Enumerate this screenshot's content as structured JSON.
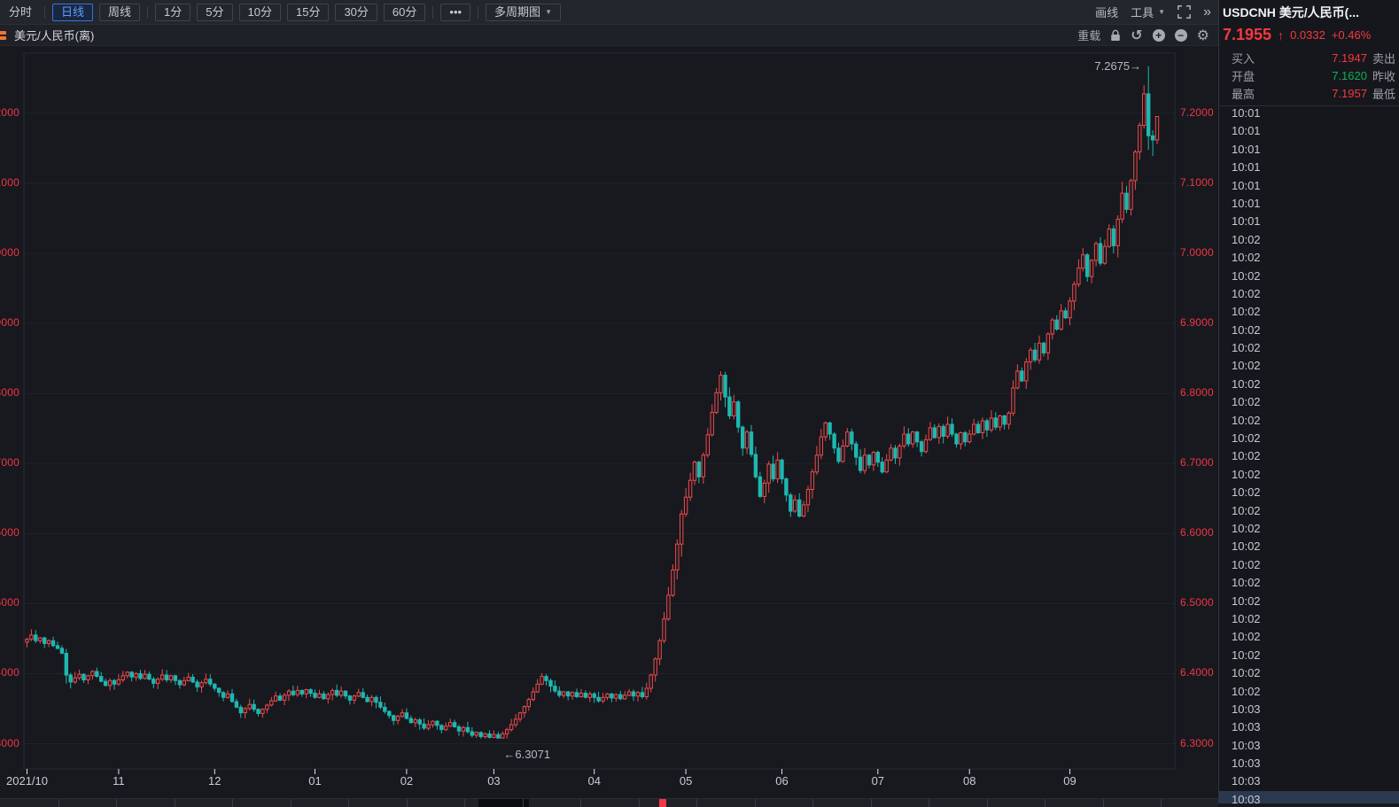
{
  "colors": {
    "red": "#f5393f",
    "green": "#10b057",
    "up": "#ef4a4e",
    "down": "#1db8b0",
    "axis_red": "#f23645"
  },
  "icons": {
    "caret_down": "▼",
    "more_dots": "•••",
    "collapse_right": "»",
    "undo": "↺",
    "zoom_in": "+",
    "zoom_out": "−",
    "gear": "⚙",
    "up_arrow": "↑"
  },
  "toolbar": {
    "periods": [
      {
        "label": "分时",
        "plain": true,
        "sep_after": true
      },
      {
        "label": "日线",
        "selected": true
      },
      {
        "label": "周线",
        "sep_after": true
      },
      {
        "label": "1分"
      },
      {
        "label": "5分"
      },
      {
        "label": "10分"
      },
      {
        "label": "15分"
      },
      {
        "label": "30分"
      },
      {
        "label": "60分",
        "sep_after": true
      },
      {
        "label": "•••",
        "sep_after": true
      },
      {
        "label": "多周期图",
        "caret": true
      }
    ],
    "draw_label": "画线",
    "tools_label": "工具"
  },
  "chart_header": {
    "symbol_label": "美元/人民币(离)",
    "reload_label": "重载"
  },
  "quote_panel": {
    "title": "USDCNH 美元/人民币(...",
    "last": "7.1955",
    "change": "0.0332",
    "change_pct": "+0.46%",
    "direction": "up",
    "rows": [
      {
        "label_left": "买入",
        "value": "7.1947",
        "value_color": "red",
        "label_right": "卖出"
      },
      {
        "label_left": "开盘",
        "value": "7.1620",
        "value_color": "green",
        "label_right": "昨收"
      },
      {
        "label_left": "最高",
        "value": "7.1957",
        "value_color": "red",
        "label_right": "最低"
      }
    ]
  },
  "tape": {
    "selected_last": true,
    "rows": [
      "10:01",
      "10:01",
      "10:01",
      "10:01",
      "10:01",
      "10:01",
      "10:01",
      "10:02",
      "10:02",
      "10:02",
      "10:02",
      "10:02",
      "10:02",
      "10:02",
      "10:02",
      "10:02",
      "10:02",
      "10:02",
      "10:02",
      "10:02",
      "10:02",
      "10:02",
      "10:02",
      "10:02",
      "10:02",
      "10:02",
      "10:02",
      "10:02",
      "10:02",
      "10:02",
      "10:02",
      "10:02",
      "10:02",
      "10:03",
      "10:03",
      "10:03",
      "10:03",
      "10:03",
      "10:03"
    ]
  },
  "chart_data": {
    "type": "candlestick",
    "symbol": "USDCNH",
    "title": "美元/人民币(离)",
    "timeframe": "日线",
    "x_tick_labels": [
      "2021/10",
      "11",
      "12",
      "01",
      "02",
      "03",
      "04",
      "05",
      "06",
      "07",
      "08",
      "09"
    ],
    "x_tick_indices": [
      0,
      21,
      43,
      66,
      87,
      107,
      130,
      151,
      173,
      195,
      216,
      239
    ],
    "y_ticks": [
      "7.2000",
      "7.1000",
      "7.0000",
      "6.9000",
      "6.8000",
      "6.7000",
      "6.6000",
      "6.5000",
      "6.4000",
      "6.3000"
    ],
    "y_tick_values": [
      7.2,
      7.1,
      7.0,
      6.9,
      6.8,
      6.7,
      6.6,
      6.5,
      6.4,
      6.3
    ],
    "ylim": [
      6.2639,
      7.286
    ],
    "grid": true,
    "axis_label_color": "#f23645",
    "up_color": "#ef4a4e",
    "down_color": "#1db8b0",
    "high_annotation": {
      "text": "7.2675→",
      "index": 257,
      "price": 7.2675
    },
    "low_annotation": {
      "text": "←6.3071",
      "index": 108,
      "price": 6.3071
    },
    "wick_pattern": [
      0.004,
      0.009,
      0.002,
      0.012,
      0.006,
      0.003,
      0.01,
      0.005,
      0.008,
      0.002
    ],
    "overrides": {
      "108": {
        "low": 6.3071
      },
      "257": {
        "open": 7.228,
        "close": 7.168,
        "high": 7.2675,
        "low": 7.148
      },
      "258": {
        "high": 7.176,
        "low": 7.139
      },
      "259": {
        "open": 7.162,
        "close": 7.1955,
        "high": 7.1957,
        "low": 7.156
      }
    },
    "closes": [
      6.449,
      6.455,
      6.447,
      6.451,
      6.443,
      6.447,
      6.44,
      6.436,
      6.429,
      6.398,
      6.388,
      6.394,
      6.399,
      6.391,
      6.397,
      6.403,
      6.396,
      6.389,
      6.383,
      6.39,
      6.385,
      6.391,
      6.397,
      6.402,
      6.395,
      6.4,
      6.393,
      6.399,
      6.392,
      6.386,
      6.392,
      6.398,
      6.391,
      6.397,
      6.39,
      6.384,
      6.39,
      6.395,
      6.388,
      6.381,
      6.387,
      6.392,
      6.385,
      6.379,
      6.373,
      6.366,
      6.371,
      6.36,
      6.352,
      6.344,
      6.35,
      6.356,
      6.349,
      6.343,
      6.349,
      6.355,
      6.361,
      6.368,
      6.362,
      6.369,
      6.375,
      6.37,
      6.376,
      6.371,
      6.377,
      6.372,
      6.366,
      6.371,
      6.364,
      6.37,
      6.376,
      6.369,
      6.375,
      6.368,
      6.362,
      6.368,
      6.373,
      6.366,
      6.36,
      6.366,
      6.359,
      6.352,
      6.346,
      6.34,
      6.333,
      6.339,
      6.344,
      6.336,
      6.33,
      6.334,
      6.328,
      6.322,
      6.327,
      6.332,
      6.326,
      6.32,
      6.325,
      6.33,
      6.324,
      6.318,
      6.323,
      6.317,
      6.312,
      6.316,
      6.31,
      6.314,
      6.309,
      6.313,
      6.308,
      6.314,
      6.32,
      6.327,
      6.335,
      6.344,
      6.353,
      6.363,
      6.374,
      6.385,
      6.396,
      6.39,
      6.382,
      6.375,
      6.369,
      6.374,
      6.368,
      6.373,
      6.367,
      6.372,
      6.366,
      6.371,
      6.366,
      6.361,
      6.366,
      6.371,
      6.365,
      6.37,
      6.364,
      6.369,
      6.374,
      6.368,
      6.373,
      6.367,
      6.379,
      6.398,
      6.421,
      6.447,
      6.478,
      6.512,
      6.548,
      6.585,
      6.628,
      6.652,
      6.676,
      6.702,
      6.681,
      6.712,
      6.741,
      6.773,
      6.801,
      6.826,
      6.795,
      6.768,
      6.788,
      6.752,
      6.722,
      6.745,
      6.713,
      6.681,
      6.653,
      6.672,
      6.699,
      6.678,
      6.705,
      6.678,
      6.655,
      6.632,
      6.648,
      6.625,
      6.641,
      6.663,
      6.688,
      6.712,
      6.738,
      6.758,
      6.742,
      6.722,
      6.703,
      6.725,
      6.745,
      6.728,
      6.709,
      6.69,
      6.712,
      6.698,
      6.716,
      6.702,
      6.688,
      6.705,
      6.722,
      6.708,
      6.725,
      6.742,
      6.728,
      6.745,
      6.731,
      6.717,
      6.734,
      6.751,
      6.737,
      6.753,
      6.739,
      6.756,
      6.742,
      6.728,
      6.744,
      6.731,
      6.742,
      6.756,
      6.744,
      6.761,
      6.748,
      6.765,
      6.752,
      6.768,
      6.756,
      6.772,
      6.808,
      6.832,
      6.818,
      6.845,
      6.862,
      6.848,
      6.872,
      6.858,
      6.885,
      6.905,
      6.892,
      6.918,
      6.908,
      6.932,
      6.956,
      6.979,
      6.998,
      6.967,
      6.99,
      7.014,
      6.986,
      7.01,
      7.035,
      7.011,
      7.049,
      7.086,
      7.063,
      7.104,
      7.145,
      7.183,
      7.228,
      7.168,
      7.162,
      7.1955
    ]
  }
}
